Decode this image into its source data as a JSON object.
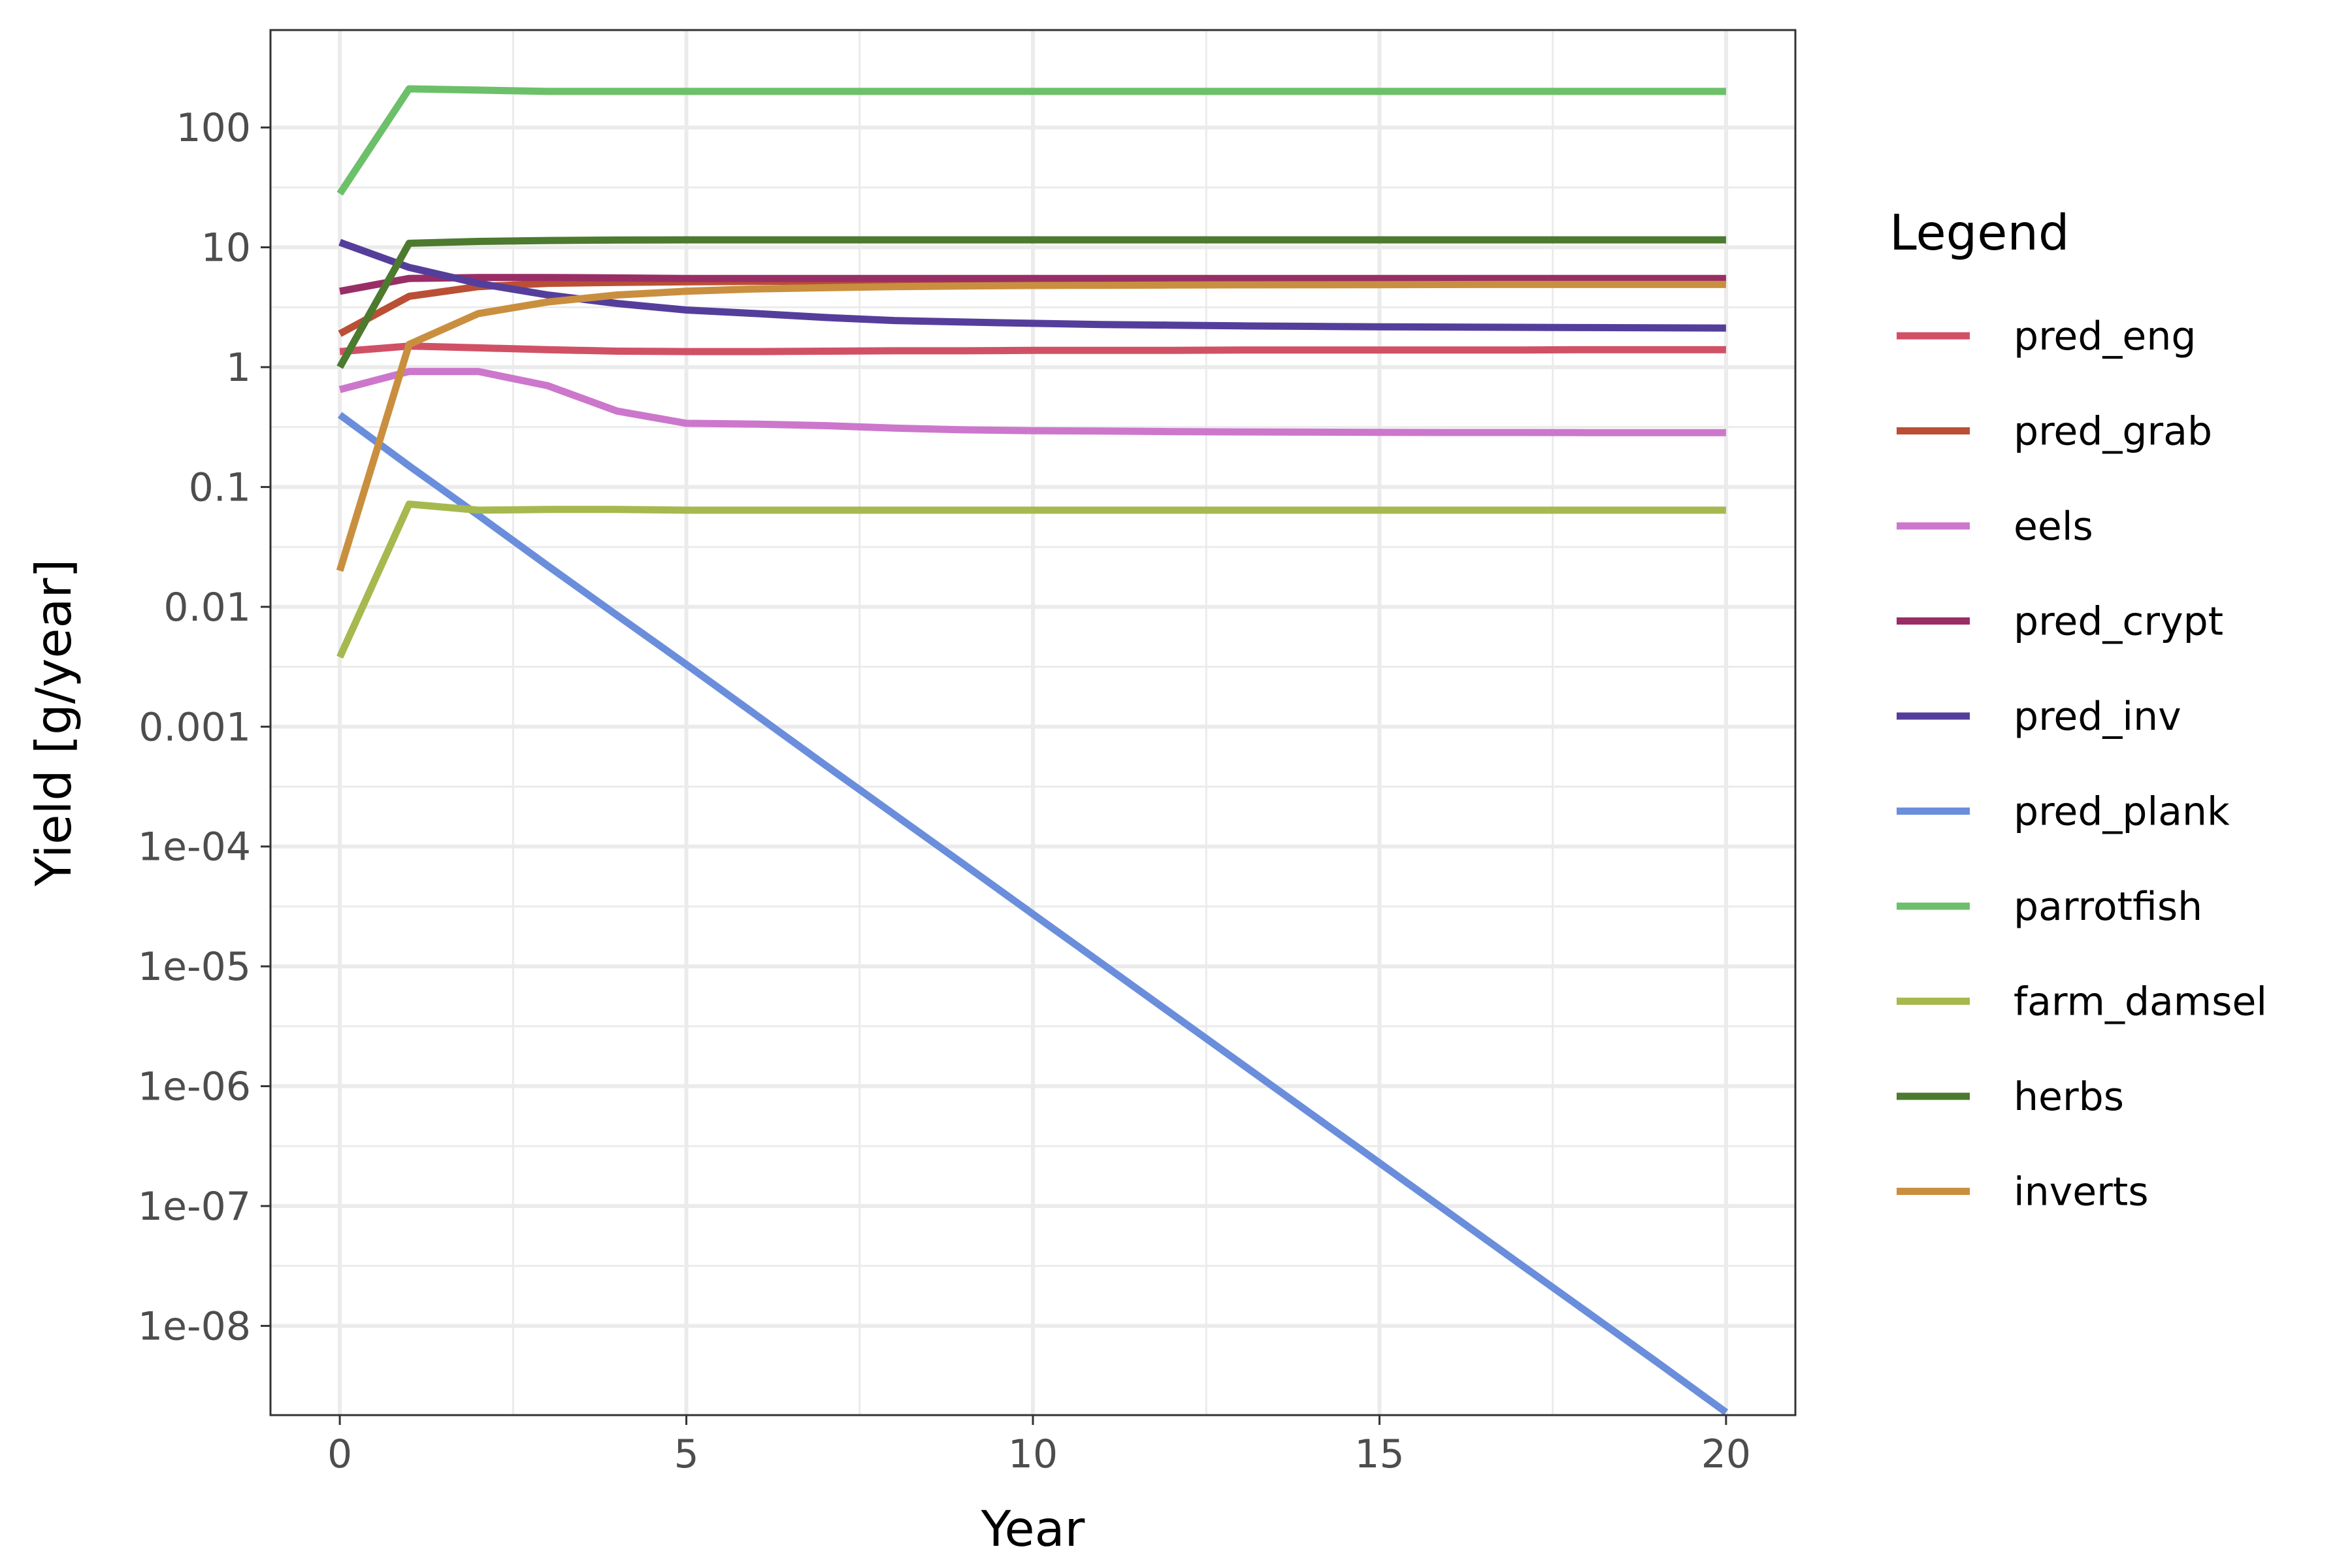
{
  "chart_data": {
    "type": "line",
    "xlabel": "Year",
    "ylabel": "Yield [g/year]",
    "xlim": [
      -1,
      21
    ],
    "ylim": [
      1.8e-09,
      650
    ],
    "yscale": "log",
    "grid": true,
    "legend_position": "right",
    "legend_title": "Legend",
    "x_ticks": [
      {
        "value": 0,
        "label": "0"
      },
      {
        "value": 5,
        "label": "5"
      },
      {
        "value": 10,
        "label": "10"
      },
      {
        "value": 15,
        "label": "15"
      },
      {
        "value": 20,
        "label": "20"
      }
    ],
    "y_ticks": [
      {
        "value": 1e-08,
        "label": "1e-08"
      },
      {
        "value": 1e-07,
        "label": "1e-07"
      },
      {
        "value": 1e-06,
        "label": "1e-06"
      },
      {
        "value": 1e-05,
        "label": "1e-05"
      },
      {
        "value": 0.0001,
        "label": "1e-04"
      },
      {
        "value": 0.001,
        "label": "0.001"
      },
      {
        "value": 0.01,
        "label": "0.01"
      },
      {
        "value": 0.1,
        "label": "0.1"
      },
      {
        "value": 1,
        "label": "1"
      },
      {
        "value": 10,
        "label": "10"
      },
      {
        "value": 100,
        "label": "100"
      }
    ],
    "x": [
      0,
      1,
      2,
      3,
      4,
      5,
      6,
      7,
      8,
      9,
      10,
      11,
      12,
      13,
      14,
      15,
      16,
      17,
      18,
      19,
      20
    ],
    "series": [
      {
        "name": "pred_eng",
        "color": "#D05165",
        "values": [
          1.35,
          1.5,
          1.45,
          1.4,
          1.36,
          1.35,
          1.35,
          1.36,
          1.37,
          1.37,
          1.38,
          1.38,
          1.38,
          1.39,
          1.39,
          1.39,
          1.39,
          1.39,
          1.4,
          1.4,
          1.4
        ]
      },
      {
        "name": "pred_grab",
        "color": "#BA4F35",
        "values": [
          1.9,
          3.9,
          4.7,
          5.0,
          5.1,
          5.15,
          5.2,
          5.22,
          5.24,
          5.25,
          5.26,
          5.27,
          5.28,
          5.28,
          5.29,
          5.29,
          5.29,
          5.3,
          5.3,
          5.3,
          5.3
        ]
      },
      {
        "name": "eels",
        "color": "#CC77CC",
        "values": [
          0.65,
          0.92,
          0.92,
          0.7,
          0.43,
          0.34,
          0.335,
          0.325,
          0.31,
          0.3,
          0.295,
          0.293,
          0.29,
          0.288,
          0.287,
          0.286,
          0.285,
          0.285,
          0.284,
          0.284,
          0.284
        ]
      },
      {
        "name": "pred_crypt",
        "color": "#992E66",
        "values": [
          4.3,
          5.5,
          5.6,
          5.6,
          5.55,
          5.5,
          5.5,
          5.5,
          5.5,
          5.5,
          5.5,
          5.5,
          5.5,
          5.5,
          5.5,
          5.5,
          5.5,
          5.5,
          5.5,
          5.5,
          5.5
        ]
      },
      {
        "name": "pred_inv",
        "color": "#553E9B",
        "values": [
          11,
          6.8,
          5.0,
          4.0,
          3.4,
          3.0,
          2.8,
          2.6,
          2.45,
          2.38,
          2.32,
          2.27,
          2.24,
          2.21,
          2.19,
          2.17,
          2.16,
          2.15,
          2.14,
          2.13,
          2.12
        ]
      },
      {
        "name": "pred_plank",
        "color": "#6A8EDB",
        "values": [
          0.4,
          0.15,
          0.058,
          0.022,
          0.0085,
          0.0033,
          0.00126,
          0.00048,
          0.000185,
          7.12e-05,
          2.73e-05,
          1.05e-05,
          4.03e-06,
          1.55e-06,
          5.95e-07,
          2.29e-07,
          8.8e-08,
          3.37e-08,
          1.3e-08,
          5e-09,
          1.9e-09
        ]
      },
      {
        "name": "parrotfish",
        "color": "#6CC06A",
        "values": [
          28,
          210,
          205,
          200,
          200,
          200,
          200,
          200,
          200,
          200,
          200,
          200,
          200,
          200,
          200,
          200,
          200,
          200,
          200,
          200,
          200
        ]
      },
      {
        "name": "farm_damsel",
        "color": "#A6B94F",
        "values": [
          0.0038,
          0.072,
          0.064,
          0.065,
          0.065,
          0.064,
          0.064,
          0.064,
          0.064,
          0.064,
          0.064,
          0.064,
          0.064,
          0.064,
          0.064,
          0.064,
          0.064,
          0.064,
          0.064,
          0.064,
          0.064
        ]
      },
      {
        "name": "herbs",
        "color": "#4C7A2E",
        "values": [
          1.0,
          10.8,
          11.2,
          11.4,
          11.5,
          11.55,
          11.55,
          11.55,
          11.55,
          11.55,
          11.55,
          11.55,
          11.55,
          11.55,
          11.55,
          11.55,
          11.55,
          11.55,
          11.55,
          11.55,
          11.55
        ]
      },
      {
        "name": "inverts",
        "color": "#C98F3F",
        "values": [
          0.02,
          1.55,
          2.8,
          3.5,
          4.0,
          4.3,
          4.5,
          4.6,
          4.7,
          4.75,
          4.8,
          4.82,
          4.84,
          4.86,
          4.87,
          4.88,
          4.89,
          4.9,
          4.9,
          4.9,
          4.9
        ]
      }
    ]
  }
}
